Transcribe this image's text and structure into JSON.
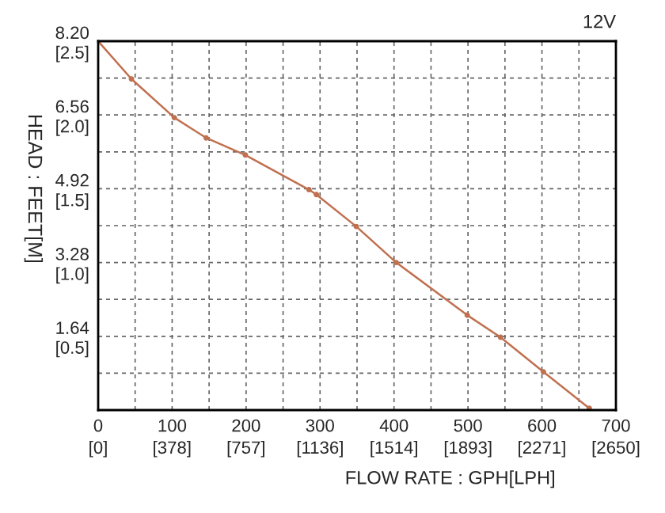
{
  "chart_data": {
    "type": "line",
    "title": "12V",
    "xlabel": "FLOW RATE : GPH[LPH]",
    "ylabel": "HEAD : FEET[M]",
    "x": [
      0,
      45,
      103,
      146,
      199,
      285,
      295,
      349,
      403,
      499,
      544,
      602,
      664
    ],
    "series": [
      {
        "color": "#c0704f",
        "values": [
          8.2,
          7.36,
          6.5,
          6.05,
          5.67,
          4.9,
          4.79,
          4.08,
          3.28,
          2.11,
          1.62,
          0.85,
          0.04
        ]
      }
    ],
    "xlim": [
      0,
      700
    ],
    "ylim": [
      0,
      8.2
    ],
    "xticks": [
      0,
      {
        "value": 50,
        "label": null
      },
      100,
      {
        "value": 150,
        "label": null
      },
      200,
      {
        "value": 250,
        "label": null
      },
      300,
      {
        "value": 350,
        "label": null
      },
      400,
      {
        "value": 450,
        "label": null
      },
      500,
      {
        "value": 550,
        "label": null
      },
      600,
      {
        "value": 650,
        "label": null
      },
      700
    ],
    "x2lim": [
      0,
      2650
    ],
    "x2ticks": [
      {
        "value": 0,
        "label": "[0]"
      },
      {
        "value": 378,
        "label": "[378]"
      },
      {
        "value": 757,
        "label": "[757]"
      },
      {
        "value": 1136,
        "label": "[1136]"
      },
      {
        "value": 1514,
        "label": "[1514]"
      },
      {
        "value": 1893,
        "label": "[1893]"
      },
      {
        "value": 2271,
        "label": "[2271]"
      },
      {
        "value": 2650,
        "label": "[2650]"
      }
    ],
    "yticks": [
      {
        "value": 0.82,
        "label": null
      },
      1.64,
      {
        "value": 2.46,
        "label": null
      },
      3.28,
      {
        "value": 4.1,
        "label": null
      },
      4.92,
      {
        "value": 5.74,
        "label": null
      },
      6.56,
      {
        "value": 7.38,
        "label": null
      },
      {
        "value": 8.2,
        "label": "8.20"
      }
    ],
    "y2lim": [
      0,
      2.5
    ],
    "y2ticks": [
      {
        "value": 0.5,
        "label": "[0.5]"
      },
      {
        "value": 1.0,
        "label": "[1.0]"
      },
      {
        "value": 1.5,
        "label": "[1.5]"
      },
      {
        "value": 2.0,
        "label": "[2.0]"
      },
      {
        "value": 2.5,
        "label": "[2.5]"
      }
    ],
    "grid": true,
    "marker": "circle",
    "line_style": "solid"
  }
}
